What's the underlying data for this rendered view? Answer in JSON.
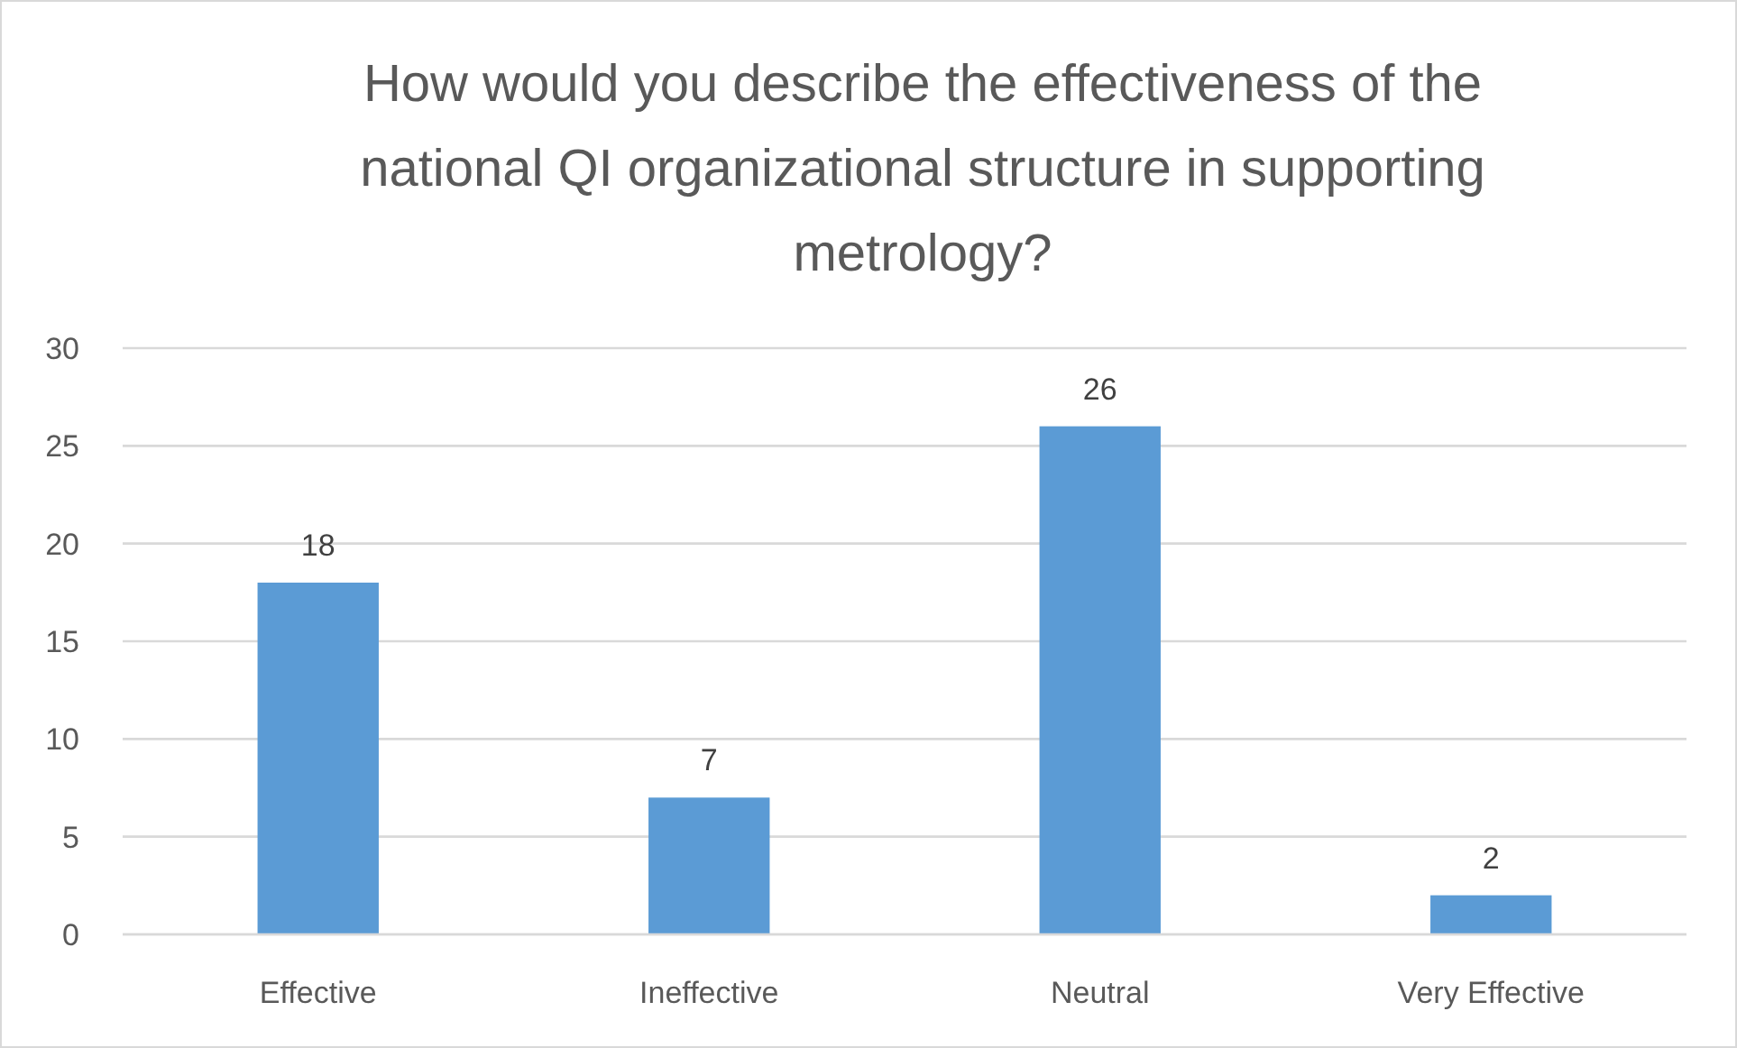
{
  "chart_data": {
    "type": "bar",
    "title": "How would you describe the effectiveness of the national QI organizational structure in supporting metrology?",
    "categories": [
      "Effective",
      "Ineffective",
      "Neutral",
      "Very Effective"
    ],
    "values": [
      18,
      7,
      26,
      2
    ],
    "color": "#5b9bd5",
    "ylim": [
      0,
      30
    ],
    "yticks": [
      0,
      5,
      10,
      15,
      20,
      25,
      30
    ],
    "grid": "y",
    "data_labels": true
  }
}
